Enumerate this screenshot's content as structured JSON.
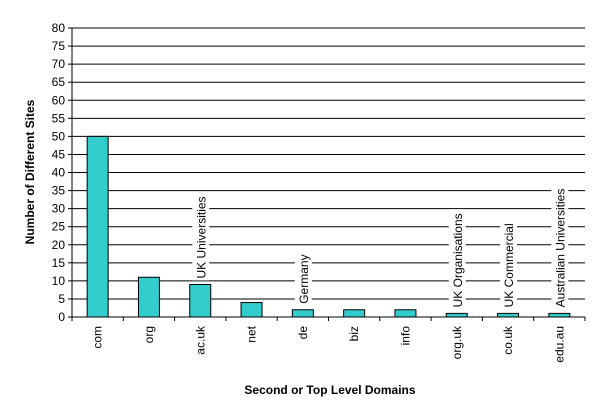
{
  "chart_data": {
    "type": "bar",
    "categories": [
      "com",
      "org",
      "ac.uk",
      "net",
      "de",
      "biz",
      "info",
      "org.uk",
      "co.uk",
      "edu.au"
    ],
    "values": [
      50,
      11,
      9,
      4,
      2,
      2,
      2,
      1,
      1,
      1
    ],
    "xlabel": "Second or Top Level Domains",
    "ylabel": "Number of Different Sites",
    "ylim": [
      0,
      80
    ],
    "yticks": [
      0,
      5,
      10,
      15,
      20,
      25,
      30,
      35,
      40,
      45,
      50,
      55,
      60,
      65,
      70,
      75,
      80
    ],
    "grid": true,
    "legend": "none",
    "bar_color": "#33cccc",
    "annotations": [
      {
        "category": "ac.uk",
        "text": "UK Universities"
      },
      {
        "category": "de",
        "text": "Germany"
      },
      {
        "category": "org.uk",
        "text": "UK Organisations"
      },
      {
        "category": "co.uk",
        "text": "UK Commercial"
      },
      {
        "category": "edu.au",
        "text": "Australian Universities"
      }
    ]
  }
}
